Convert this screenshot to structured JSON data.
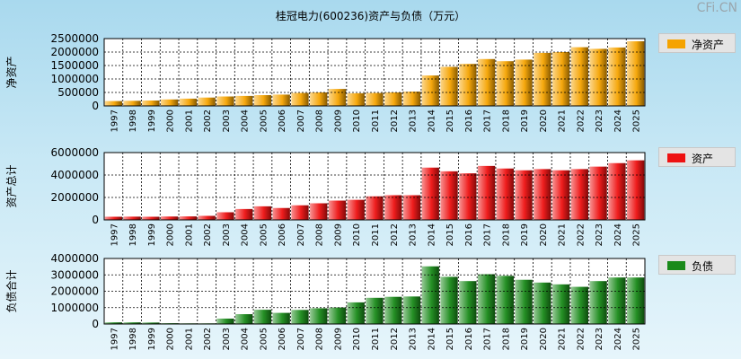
{
  "title": "桂冠电力(600236)资产与负债（万元）",
  "watermark": "CFi.CN",
  "chart_data": [
    {
      "type": "bar",
      "key": "equity",
      "ylabel": "净资产",
      "legend": "净资产",
      "color": "#f5a300",
      "ylim": [
        0,
        2500000
      ],
      "yticks": [
        0,
        500000,
        1000000,
        1500000,
        2000000,
        2500000
      ],
      "ytick_labels": [
        "0",
        "500000",
        "1000000",
        "1500000",
        "2000000",
        "2500000"
      ],
      "categories": [
        "1997",
        "1998",
        "1999",
        "2000",
        "2001",
        "2002",
        "2003",
        "2004",
        "2005",
        "2006",
        "2007",
        "2008",
        "2009",
        "2010",
        "2011",
        "2012",
        "2013",
        "2014",
        "2015",
        "2016",
        "2017",
        "2018",
        "2019",
        "2020",
        "2021",
        "2022",
        "2023",
        "2024",
        "2025"
      ],
      "values": [
        180000,
        190000,
        200000,
        240000,
        270000,
        310000,
        350000,
        370000,
        400000,
        420000,
        480000,
        500000,
        630000,
        470000,
        480000,
        500000,
        530000,
        1130000,
        1450000,
        1560000,
        1740000,
        1660000,
        1720000,
        1970000,
        2000000,
        2180000,
        2120000,
        2170000,
        2400000
      ]
    },
    {
      "type": "bar",
      "key": "assets",
      "ylabel": "资产总计",
      "legend": "资产",
      "color": "#ee1111",
      "ylim": [
        0,
        6000000
      ],
      "yticks": [
        0,
        2000000,
        4000000,
        6000000
      ],
      "ytick_labels": [
        "0",
        "2000000",
        "4000000",
        "6000000"
      ],
      "categories": [
        "1997",
        "1998",
        "1999",
        "2000",
        "2001",
        "2002",
        "2003",
        "2004",
        "2005",
        "2006",
        "2007",
        "2008",
        "2009",
        "2010",
        "2011",
        "2012",
        "2013",
        "2014",
        "2015",
        "2016",
        "2017",
        "2018",
        "2019",
        "2020",
        "2021",
        "2022",
        "2023",
        "2024",
        "2025"
      ],
      "values": [
        280000,
        290000,
        280000,
        300000,
        310000,
        360000,
        680000,
        970000,
        1210000,
        1060000,
        1300000,
        1480000,
        1720000,
        1790000,
        2100000,
        2200000,
        2200000,
        4660000,
        4330000,
        4150000,
        4810000,
        4580000,
        4420000,
        4530000,
        4420000,
        4530000,
        4750000,
        5060000,
        5310000
      ]
    },
    {
      "type": "bar",
      "key": "liabilities",
      "ylabel": "负债合计",
      "legend": "负债",
      "color": "#1a8a1a",
      "ylim": [
        0,
        4000000
      ],
      "yticks": [
        0,
        1000000,
        2000000,
        3000000,
        4000000
      ],
      "ytick_labels": [
        "0",
        "1000000",
        "2000000",
        "3000000",
        "4000000"
      ],
      "categories": [
        "1997",
        "1998",
        "1999",
        "2000",
        "2001",
        "2002",
        "2003",
        "2004",
        "2005",
        "2006",
        "2007",
        "2008",
        "2009",
        "2010",
        "2011",
        "2012",
        "2013",
        "2014",
        "2015",
        "2016",
        "2017",
        "2018",
        "2019",
        "2020",
        "2021",
        "2022",
        "2023",
        "2024",
        "2025"
      ],
      "values": [
        100000,
        100000,
        90000,
        50000,
        40000,
        40000,
        330000,
        600000,
        870000,
        680000,
        860000,
        960000,
        1010000,
        1320000,
        1600000,
        1660000,
        1680000,
        3520000,
        2880000,
        2620000,
        3040000,
        2940000,
        2700000,
        2530000,
        2420000,
        2270000,
        2620000,
        2840000,
        2840000
      ]
    }
  ]
}
